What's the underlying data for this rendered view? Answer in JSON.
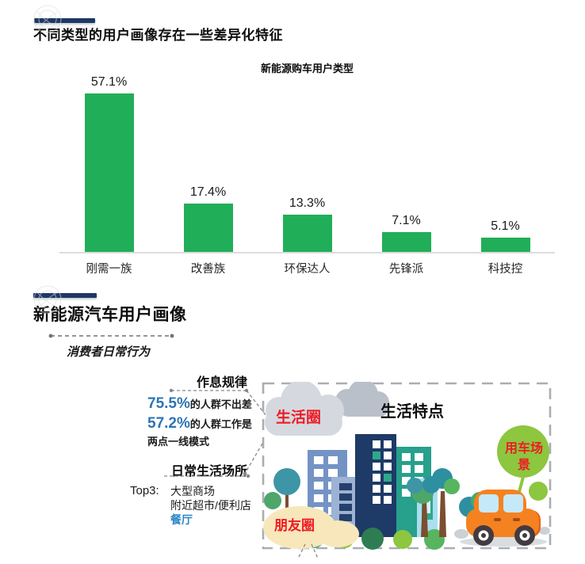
{
  "page": {
    "section1_title": "不同类型的用户画像存在一些差异化特征",
    "section2_title": "新能源汽车用户画像",
    "section2_subtitle": "消费者日常行为"
  },
  "chart_data": {
    "type": "bar",
    "title": "新能源购车用户类型",
    "categories": [
      "刚需一族",
      "改善族",
      "环保达人",
      "先锋派",
      "科技控"
    ],
    "values": [
      57.1,
      17.4,
      13.3,
      7.1,
      5.1
    ],
    "unit": "%",
    "bar_color": "#21ae58",
    "xlabel": "",
    "ylabel": "",
    "ylim": [
      0,
      60
    ],
    "grid": false,
    "legend": "none",
    "value_labels": [
      "57.1%",
      "17.4%",
      "13.3%",
      "7.1%",
      "5.1%"
    ]
  },
  "daily_behavior": {
    "routine_title": "作息规律",
    "stats": [
      {
        "value": "75.5%",
        "text": "的人群不出差"
      },
      {
        "value": "57.2%",
        "text": "的人群工作是",
        "text2": "两点一线模式"
      }
    ],
    "places_title": "日常生活场所",
    "top3_label": "Top3:",
    "places": [
      "大型商场",
      "附近超市/便利店",
      "餐厅"
    ]
  },
  "illustration": {
    "life_circle_label": "生活圈",
    "headline": "生活特点",
    "car_scene_label": "用车场景",
    "friends_circle_label": "朋友圈"
  },
  "colors": {
    "bar_green": "#21ae58",
    "accent_navy": "#1f3864",
    "stat_blue": "#2e74b5",
    "place_blue": "#2e86c5",
    "label_red": "#ee1b23",
    "scene_green": "#8dc63f"
  }
}
